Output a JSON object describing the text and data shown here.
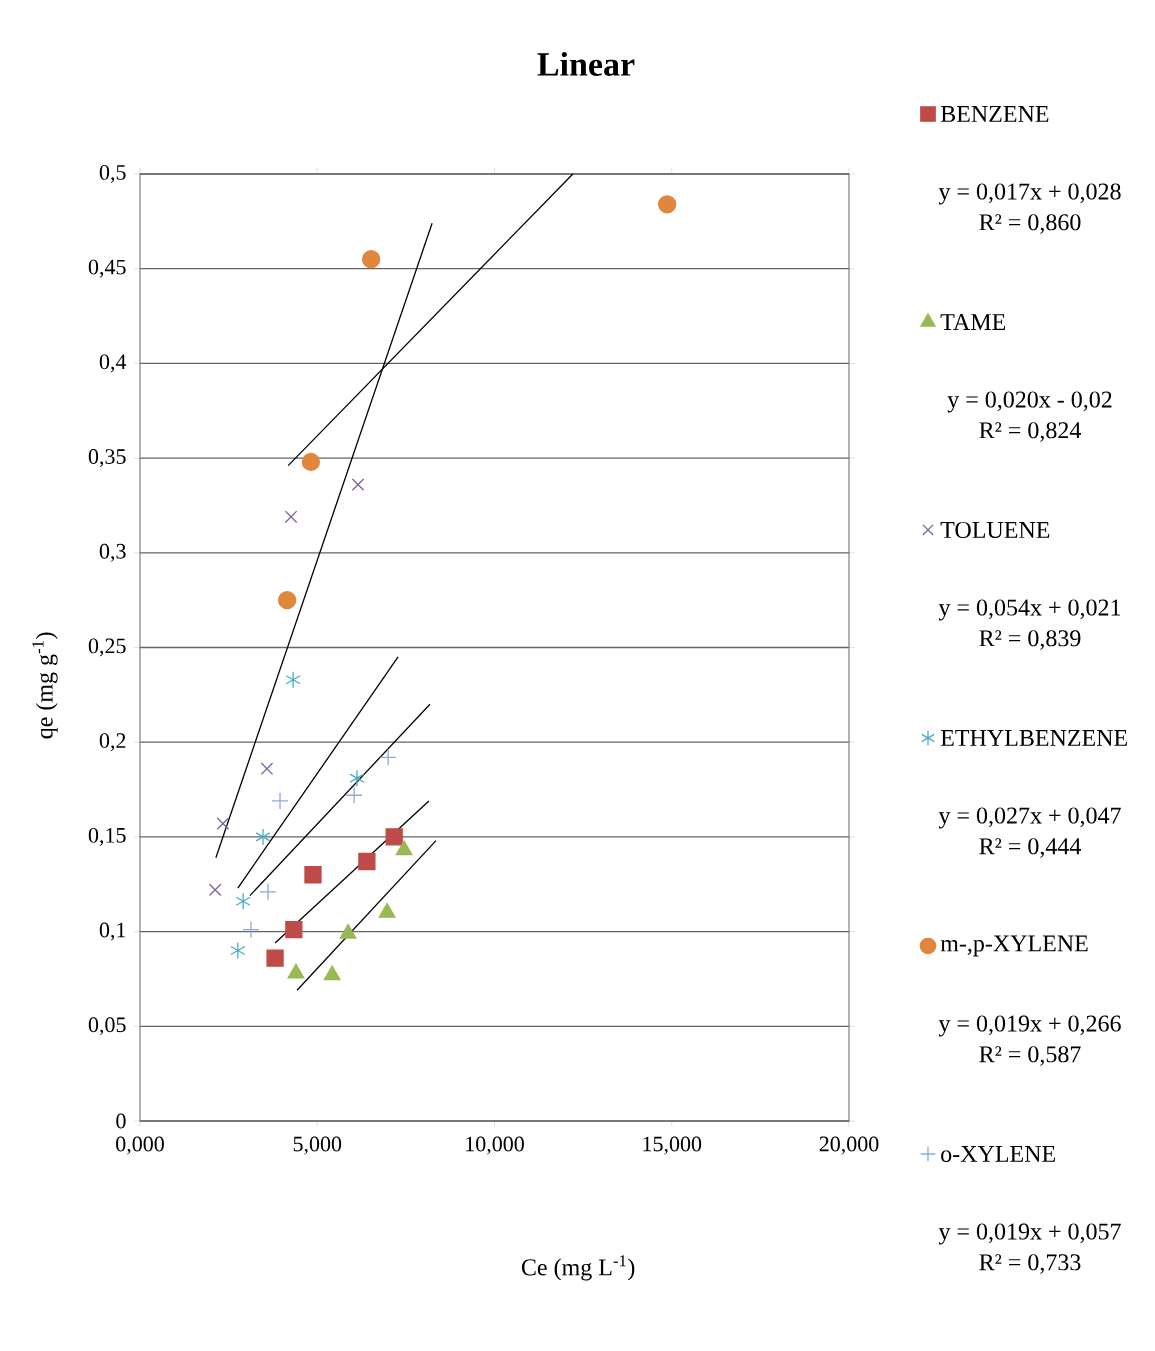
{
  "chart_data": {
    "type": "scatter",
    "title": "Linear",
    "xlabel": "Ce  (mg L$^{-1}$)",
    "ylabel": "qe (mg g$^{-1}$)",
    "xlim": [
      0,
      20
    ],
    "ylim": [
      0,
      0.5
    ],
    "xticks": [
      {
        "value": 0,
        "label": "0,000"
      },
      {
        "value": 5,
        "label": "5,000"
      },
      {
        "value": 10,
        "label": "10,000"
      },
      {
        "value": 15,
        "label": "15,000"
      },
      {
        "value": 20,
        "label": "20,000"
      }
    ],
    "yticks": [
      0,
      {
        "value": 0.05,
        "label": "0,05"
      },
      {
        "value": 0.1,
        "label": "0,1"
      },
      {
        "value": 0.15,
        "label": "0,15"
      },
      {
        "value": 0.2,
        "label": "0,2"
      },
      {
        "value": 0.25,
        "label": "0,25"
      },
      {
        "value": 0.3,
        "label": "0,3"
      },
      {
        "value": 0.35,
        "label": "0,35"
      },
      {
        "value": 0.4,
        "label": "0,4"
      },
      {
        "value": 0.45,
        "label": "0,45"
      },
      {
        "value": 0.5,
        "label": "0,5"
      }
    ],
    "grid": "y",
    "legend": "right",
    "series": [
      {
        "name": "BENZENE",
        "color": "#be4b48",
        "marker": "square",
        "x": [
          3.81,
          4.34,
          4.88,
          6.4,
          7.17
        ],
        "values": [
          0.086,
          0.101,
          0.13,
          0.137,
          0.15
        ]
      },
      {
        "name": "TAME",
        "color": "#98b954",
        "marker": "triangle",
        "x": [
          4.4,
          5.42,
          5.87,
          6.97,
          7.45
        ],
        "values": [
          0.078,
          0.077,
          0.099,
          0.11,
          0.143
        ]
      },
      {
        "name": "TOLUENE",
        "color": "#7d60a0",
        "marker": "cross",
        "x": [
          2.12,
          2.34,
          3.58,
          4.26,
          6.15
        ],
        "values": [
          0.122,
          0.157,
          0.186,
          0.319,
          0.336
        ]
      },
      {
        "name": "ETHYLBENZENE",
        "color": "#4bacc6",
        "x": [
          2.76,
          2.91,
          3.47,
          4.32,
          6.12
        ],
        "values": [
          0.09,
          0.116,
          0.15,
          0.233,
          0.181
        ]
      },
      {
        "name": "m-,p-XYLENE",
        "color": "#e0873e",
        "marker": "circle",
        "x": [
          4.15,
          4.82,
          6.52,
          14.87
        ],
        "values": [
          0.275,
          0.348,
          0.455,
          0.484
        ]
      },
      {
        "name": "o-XYLENE",
        "color": "#8ea9d8",
        "marker": "plus",
        "x": [
          3.13,
          3.61,
          3.95,
          6.04,
          7.0
        ],
        "values": [
          0.101,
          0.121,
          0.169,
          0.172,
          0.192
        ]
      },
      {
        "type": "line",
        "color": "#000000",
        "marker": "none",
        "x": [
          3.81,
          8.15
        ],
        "values": [
          0.094,
          0.169
        ]
      },
      {
        "type": "line",
        "color": "#000000",
        "marker": "none",
        "x": [
          4.43,
          8.35
        ],
        "values": [
          0.069,
          0.148
        ]
      },
      {
        "type": "line",
        "color": "#000000",
        "marker": "none",
        "x": [
          2.14,
          8.24
        ],
        "values": [
          0.139,
          0.474
        ]
      },
      {
        "type": "line",
        "color": "#000000",
        "marker": "none",
        "x": [
          2.76,
          7.28
        ],
        "values": [
          0.123,
          0.245
        ]
      },
      {
        "type": "line",
        "color": "#000000",
        "marker": "none",
        "x": [
          4.18,
          12.21
        ],
        "values": [
          0.346,
          0.5
        ]
      },
      {
        "type": "line",
        "color": "#000000",
        "marker": "none",
        "x": [
          3.1,
          8.18
        ],
        "values": [
          0.119,
          0.22
        ]
      }
    ],
    "annotations": [
      "y = 0,017x + 0,028",
      "R² = 0,860",
      "y = 0,020x - 0,02",
      "R² = 0,824",
      "y = 0,054x + 0,021",
      "R² = 0,839",
      "y = 0,027x + 0,047",
      "R² = 0,444",
      "y = 0,019x + 0,266",
      "R² = 0,587",
      "y = 0,019x + 0,057",
      "R² = 0,733"
    ]
  }
}
